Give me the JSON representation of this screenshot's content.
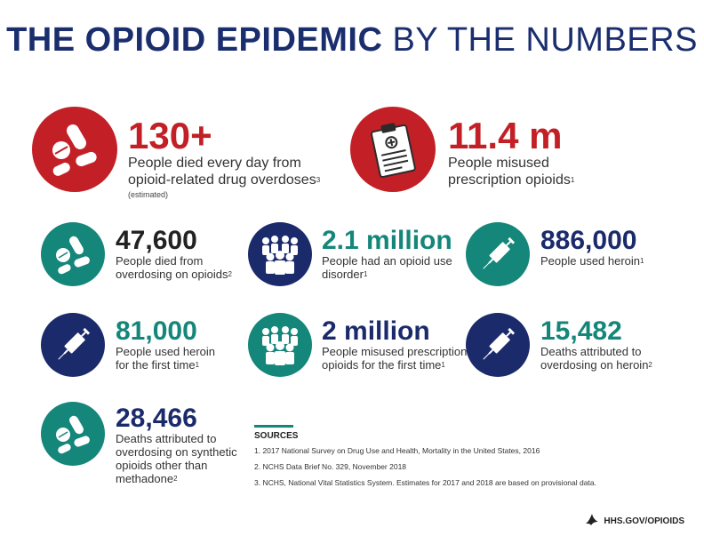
{
  "title": {
    "bold": "THE OPIOID EPIDEMIC",
    "light": "BY THE NUMBERS"
  },
  "stats": [
    {
      "number": "130+",
      "desc_lines": [
        "People died every day from",
        "opioid-related drug overdoses"
      ],
      "ref": "3",
      "note": "(estimated)",
      "icon": "pills-icon",
      "color": "#c22026"
    },
    {
      "number": "11.4 m",
      "desc_lines": [
        "People misused",
        "prescription opioids"
      ],
      "ref": "1",
      "icon": "clipboard-icon",
      "color": "#c22026"
    },
    {
      "number": "47,600",
      "desc_lines": [
        "People died from",
        "overdosing on opioids"
      ],
      "ref": "2",
      "icon": "pills-icon",
      "color": "#14867a"
    },
    {
      "number": "2.1 million",
      "desc_lines": [
        "People had an opioid use",
        "disorder"
      ],
      "ref": "1",
      "icon": "people-group-icon",
      "color": "#1b2a6b"
    },
    {
      "number": "886,000",
      "desc_lines": [
        "People used heroin"
      ],
      "ref": "1",
      "icon": "syringe-icon",
      "color": "#14867a"
    },
    {
      "number": "81,000",
      "desc_lines": [
        "People used heroin",
        "for the first time"
      ],
      "ref": "1",
      "icon": "syringe-icon",
      "color": "#1b2a6b"
    },
    {
      "number": "2 million",
      "desc_lines": [
        "People misused prescription",
        "opioids for the first time"
      ],
      "ref": "1",
      "icon": "people-group-icon",
      "color": "#14867a"
    },
    {
      "number": "15,482",
      "desc_lines": [
        "Deaths attributed to",
        "overdosing on heroin"
      ],
      "ref": "2",
      "icon": "syringe-icon",
      "color": "#1b2a6b"
    },
    {
      "number": "28,466",
      "desc_lines": [
        "Deaths attributed to",
        "overdosing on synthetic",
        "opioids other than",
        "methadone"
      ],
      "ref": "2",
      "icon": "pills-icon",
      "color": "#14867a"
    }
  ],
  "sources": {
    "heading": "SOURCES",
    "items": [
      "1.  2017 National Survey on Drug Use and Health, Mortality in the United States, 2016",
      "2.  NCHS Data Brief No. 329, November 2018",
      "3.  NCHS, National Vital Statistics System. Estimates for 2017 and 2018 are based on provisional data."
    ]
  },
  "footer": {
    "text": "HHS.GOV/OPIOIDS",
    "icon": "hhs-eagle-icon"
  }
}
